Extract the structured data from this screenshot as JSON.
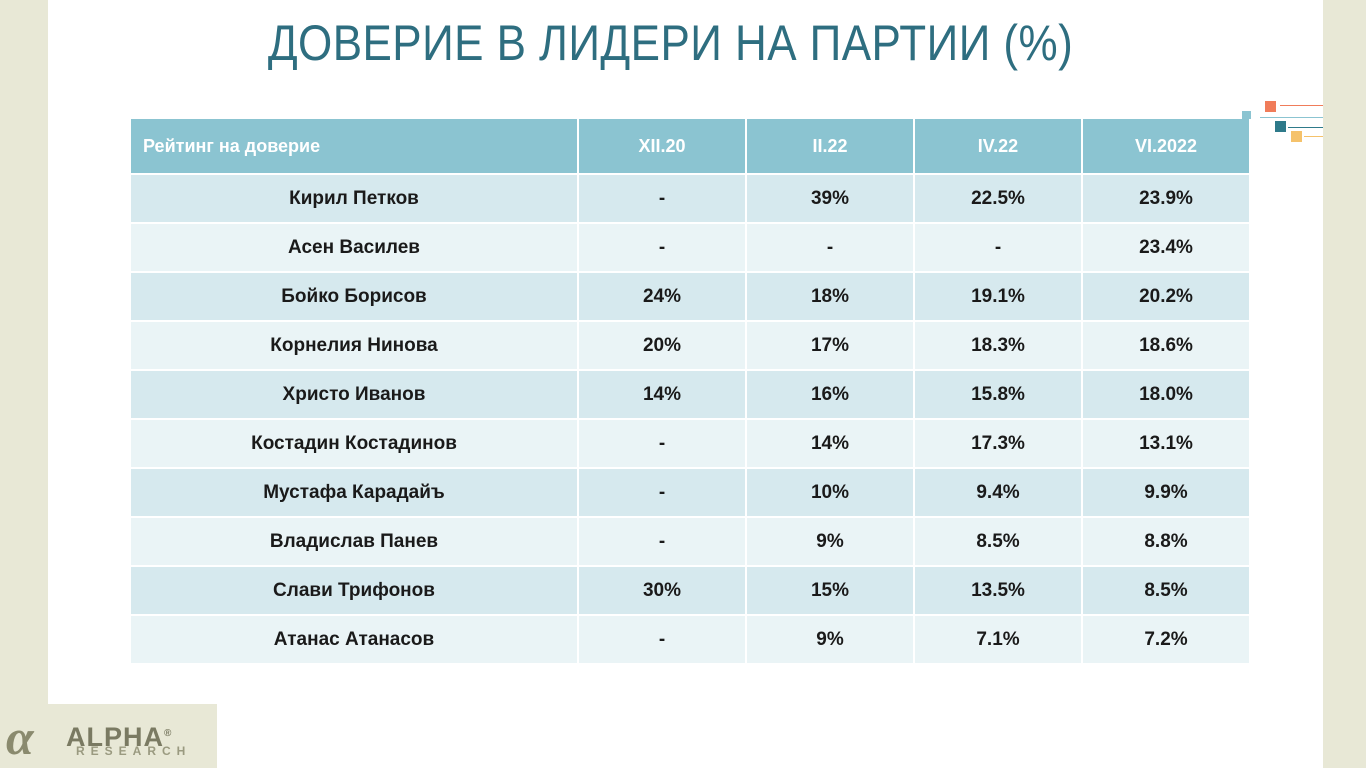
{
  "title": "ДОВЕРИЕ В ЛИДЕРИ НА ПАРТИИ (%)",
  "colors": {
    "title": "#2e6e80",
    "header_bg": "#8bc4d1",
    "row_odd": "#d6e9ee",
    "row_even": "#eaf4f6",
    "deco_orange": "#f07c5a",
    "deco_teal": "#2e7a8a",
    "deco_yellow": "#f5c26b",
    "deco_light": "#8bc4d1"
  },
  "table": {
    "headers": [
      "Рейтинг на доверие",
      "XII.20",
      "II.22",
      "IV.22",
      "VI.2022"
    ],
    "rows": [
      [
        "Кирил Петков",
        "-",
        "39%",
        "22.5%",
        "23.9%"
      ],
      [
        "Асен Василев",
        "-",
        "-",
        "-",
        "23.4%"
      ],
      [
        "Бойко Борисов",
        "24%",
        "18%",
        "19.1%",
        "20.2%"
      ],
      [
        "Корнелия Нинова",
        "20%",
        "17%",
        "18.3%",
        "18.6%"
      ],
      [
        "Христо Иванов",
        "14%",
        "16%",
        "15.8%",
        "18.0%"
      ],
      [
        "Костадин Костадинов",
        "-",
        "14%",
        "17.3%",
        "13.1%"
      ],
      [
        "Мустафа Карадайъ",
        "-",
        "10%",
        "9.4%",
        "9.9%"
      ],
      [
        "Владислав Панев",
        "-",
        "9%",
        "8.5%",
        "8.8%"
      ],
      [
        "Слави Трифонов",
        "30%",
        "15%",
        "13.5%",
        "8.5%"
      ],
      [
        "Атанас Атанасов",
        "-",
        "9%",
        "7.1%",
        "7.2%"
      ]
    ]
  },
  "logo": {
    "word": "ALPHA",
    "sub": "RESEARCH",
    "reg": "®"
  }
}
